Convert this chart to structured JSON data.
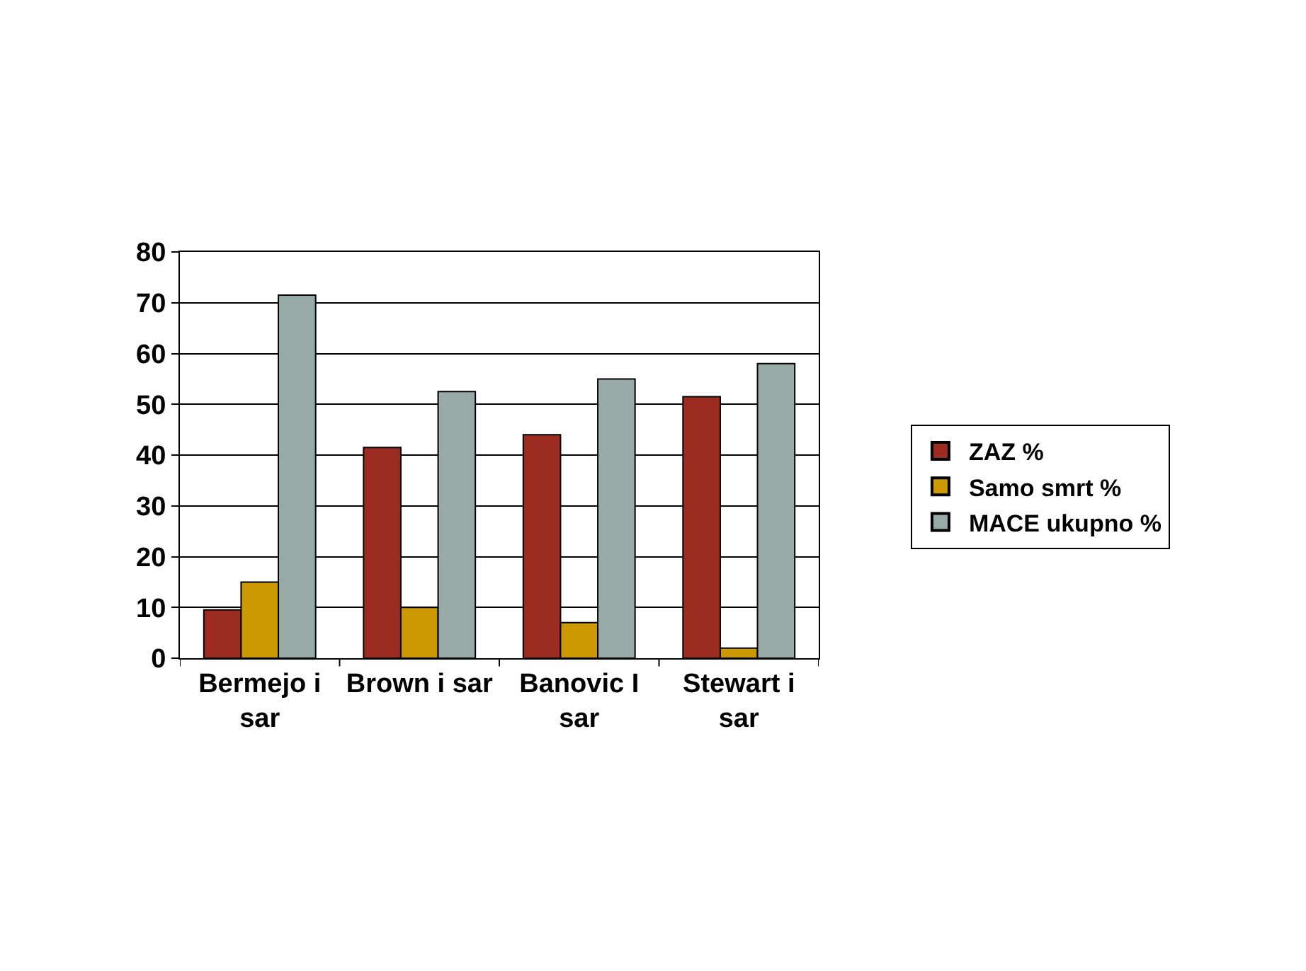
{
  "chart_data": {
    "type": "bar",
    "categories": [
      "Bermejo i sar",
      "Brown i sar",
      "Banovic I sar",
      "Stewart i sar"
    ],
    "series": [
      {
        "name": "ZAZ %",
        "color": "#9c2b20",
        "values": [
          9.5,
          41.5,
          44,
          51.5
        ]
      },
      {
        "name": "Samo smrt %",
        "color": "#cc9900",
        "values": [
          15,
          10,
          7,
          2
        ]
      },
      {
        "name": "MACE ukupno %",
        "color": "#98aaa8",
        "values": [
          71.5,
          52.5,
          55,
          58
        ]
      }
    ],
    "ylim": [
      0,
      80
    ],
    "yticks": [
      0,
      10,
      20,
      30,
      40,
      50,
      60,
      70,
      80
    ],
    "grid": "y",
    "legend": "right"
  }
}
